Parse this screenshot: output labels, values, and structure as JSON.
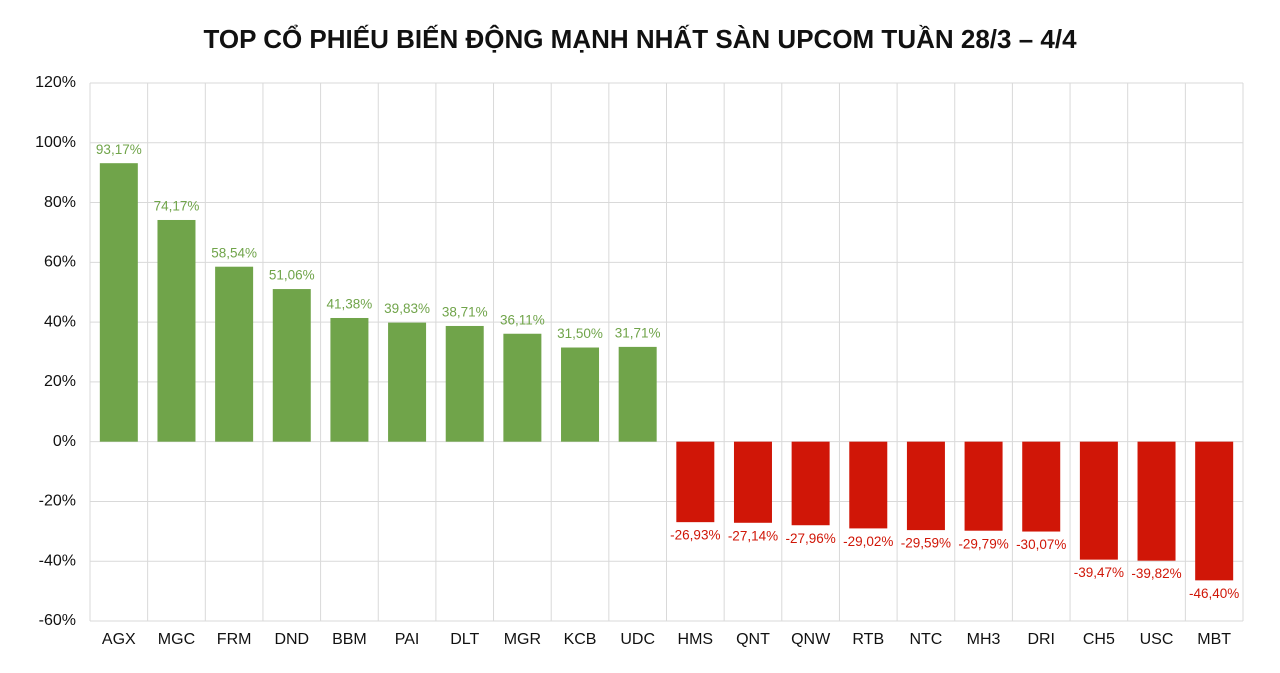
{
  "chart_data": {
    "type": "bar",
    "title": "TOP CỔ PHIẾU BIẾN ĐỘNG MẠNH NHẤT SÀN UPCOM TUẦN 28/3 – 4/4",
    "categories": [
      "AGX",
      "MGC",
      "FRM",
      "DND",
      "BBM",
      "PAI",
      "DLT",
      "MGR",
      "KCB",
      "UDC",
      "HMS",
      "QNT",
      "QNW",
      "RTB",
      "NTC",
      "MH3",
      "DRI",
      "CH5",
      "USC",
      "MBT"
    ],
    "values": [
      93.17,
      74.17,
      58.54,
      51.06,
      41.38,
      39.83,
      38.71,
      36.11,
      31.5,
      31.71,
      -26.93,
      -27.14,
      -27.96,
      -29.02,
      -29.59,
      -29.79,
      -30.07,
      -39.47,
      -39.82,
      -46.4
    ],
    "value_labels": [
      "93,17%",
      "74,17%",
      "58,54%",
      "51,06%",
      "41,38%",
      "39,83%",
      "38,71%",
      "36,11%",
      "31,50%",
      "31,71%",
      "-26,93%",
      "-27,14%",
      "-27,96%",
      "-29,02%",
      "-29,59%",
      "-29,79%",
      "-30,07%",
      "-39,47%",
      "-39,82%",
      "-46,40%"
    ],
    "color": "#70a44a",
    "negative_color": "#d01607",
    "ylim": [
      -60,
      120
    ],
    "yticks": [
      {
        "value": -60,
        "label": "-60%"
      },
      {
        "value": -40,
        "label": "-40%"
      },
      {
        "value": -20,
        "label": "-20%"
      },
      {
        "value": 0,
        "label": "0%"
      },
      {
        "value": 20,
        "label": "20%"
      },
      {
        "value": 40,
        "label": "40%"
      },
      {
        "value": 60,
        "label": "60%"
      },
      {
        "value": 80,
        "label": "80%"
      },
      {
        "value": 100,
        "label": "100%"
      },
      {
        "value": 120,
        "label": "120%"
      }
    ],
    "grid": true
  }
}
